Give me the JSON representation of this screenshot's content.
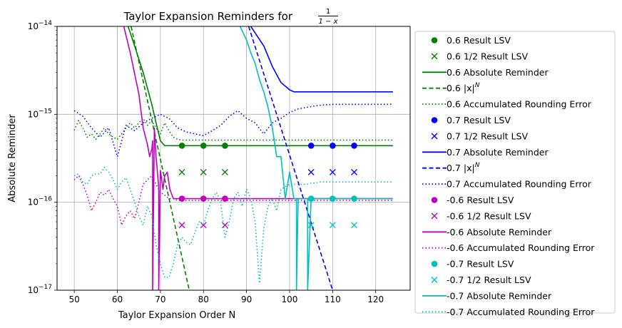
{
  "chart_data": {
    "type": "line",
    "title": "Taylor Expansion Reminders for",
    "title_fraction": {
      "numerator": "1",
      "denominator": "1 − x"
    },
    "xlabel": "Taylor Expansion Order N",
    "ylabel": "Absolute Reminder",
    "xlim": [
      46,
      128
    ],
    "ylim": [
      1e-17,
      1e-14
    ],
    "yscale": "log",
    "x_ticks": [
      50,
      60,
      70,
      80,
      90,
      100,
      110,
      120
    ],
    "y_ticks": [
      {
        "value": 1e-17,
        "base": "10",
        "exp": "−17"
      },
      {
        "value": 1e-16,
        "base": "10",
        "exp": "−16"
      },
      {
        "value": 1e-15,
        "base": "10",
        "exp": "−15"
      },
      {
        "value": 1e-14,
        "base": "10",
        "exp": "−14"
      }
    ],
    "grid": true,
    "legend_position": "outside right",
    "series": [
      {
        "name": "0.6 Result LSV",
        "kind": "marker",
        "marker": "circle",
        "color": "#008000",
        "x": [
          75,
          80,
          85
        ],
        "y": [
          4.4e-16,
          4.4e-16,
          4.4e-16
        ]
      },
      {
        "name": "0.6 1/2 Result LSV",
        "kind": "marker",
        "marker": "x",
        "color": "#008000",
        "x": [
          75,
          80,
          85
        ],
        "y": [
          2.2e-16,
          2.2e-16,
          2.2e-16
        ]
      },
      {
        "name": "0.6 Absolute Reminder",
        "kind": "line",
        "dash": "solid",
        "color": "#008000",
        "x": [
          62.5,
          64,
          66,
          68,
          69,
          70,
          71,
          72,
          80,
          90,
          100,
          110,
          124
        ],
        "y": [
          1e-14,
          6e-15,
          3e-15,
          1.3e-15,
          8e-16,
          5e-16,
          4.4e-16,
          4.4e-16,
          4.4e-16,
          4.4e-16,
          4.4e-16,
          4.4e-16,
          4.4e-16
        ]
      },
      {
        "name": "0.6 |x|^N",
        "name_base": "0.6 |x|",
        "name_sup": "N",
        "kind": "line",
        "dash": "dashed",
        "color": "#008000",
        "x": [
          63.2,
          76.7
        ],
        "y": [
          1e-14,
          1e-17
        ]
      },
      {
        "name": "0.6 Accumulated Rounding Error",
        "kind": "line",
        "dash": "dotted",
        "color": "#008000",
        "x": [
          50,
          51,
          52,
          53,
          54,
          55,
          56,
          57,
          58,
          59,
          60,
          61,
          62,
          63,
          64,
          65,
          66,
          67,
          68,
          69,
          70,
          71,
          72,
          73,
          74,
          75,
          76,
          77,
          78,
          79,
          80,
          85,
          90,
          100,
          110,
          124
        ],
        "y": [
          6.6e-16,
          8.5e-16,
          7e-16,
          5.5e-16,
          6e-16,
          5.2e-16,
          6e-16,
          7e-16,
          6e-16,
          5.5e-16,
          5.2e-16,
          6e-16,
          7e-16,
          8e-16,
          7e-16,
          8e-16,
          9e-16,
          7.5e-16,
          8.5e-16,
          7e-16,
          6e-16,
          8e-16,
          6.5e-16,
          5.5e-16,
          5.2e-16,
          5.1e-16,
          5.1e-16,
          5.1e-16,
          5.1e-16,
          5.1e-16,
          5.1e-16,
          5.1e-16,
          5.1e-16,
          5.1e-16,
          5.1e-16,
          5.1e-16
        ]
      },
      {
        "name": "0.7 Result LSV",
        "kind": "marker",
        "marker": "circle",
        "color": "#0000ff",
        "x": [
          105,
          110,
          115
        ],
        "y": [
          4.4e-16,
          4.4e-16,
          4.4e-16
        ]
      },
      {
        "name": "0.7 1/2 Result LSV",
        "kind": "marker",
        "marker": "x",
        "color": "#0000ff",
        "x": [
          105,
          110,
          115
        ],
        "y": [
          2.2e-16,
          2.2e-16,
          2.2e-16
        ]
      },
      {
        "name": "0.7 Absolute Reminder",
        "kind": "line",
        "dash": "solid",
        "color": "#0000ff",
        "x": [
          91,
          94,
          96,
          98,
          100,
          101,
          102,
          110,
          124
        ],
        "y": [
          1e-14,
          6e-15,
          3.5e-15,
          2.3e-15,
          1.9e-15,
          1.8e-15,
          1.8e-15,
          1.8e-15,
          1.8e-15
        ]
      },
      {
        "name": "0.7 |x|^N",
        "name_base": "0.7 |x|",
        "name_sup": "N",
        "kind": "line",
        "dash": "dashed",
        "color": "#0000ff",
        "x": [
          90.5,
          110
        ],
        "y": [
          1e-14,
          1e-17
        ]
      },
      {
        "name": "0.7 Accumulated Rounding Error",
        "kind": "line",
        "dash": "dotted",
        "color": "#0000ff",
        "x": [
          50,
          52,
          54,
          56,
          58,
          60,
          62,
          64,
          66,
          68,
          70,
          72,
          74,
          76,
          78,
          80,
          82,
          84,
          86,
          88,
          90,
          92,
          94,
          96,
          98,
          100,
          102,
          104,
          106,
          108,
          110,
          115,
          124
        ],
        "y": [
          1.1e-15,
          9.5e-16,
          7e-16,
          5.5e-16,
          7e-16,
          3.3e-16,
          7.5e-16,
          6.5e-16,
          8e-16,
          9e-16,
          1e-15,
          9e-16,
          7e-16,
          6.3e-16,
          6e-16,
          5.7e-16,
          6.5e-16,
          7.5e-16,
          9.5e-16,
          1.1e-15,
          9e-16,
          8e-16,
          6e-16,
          8e-16,
          9e-16,
          1.05e-15,
          1.15e-15,
          1.2e-15,
          1.25e-15,
          1.28e-15,
          1.3e-15,
          1.3e-15,
          1.3e-15
        ]
      },
      {
        "name": "-0.6 Result LSV",
        "kind": "marker",
        "marker": "circle",
        "color": "#bf00bf",
        "x": [
          75,
          80,
          85
        ],
        "y": [
          1.1e-16,
          1.1e-16,
          1.1e-16
        ]
      },
      {
        "name": "-0.6 1/2 Result LSV",
        "kind": "marker",
        "marker": "x",
        "color": "#bf00bf",
        "x": [
          75,
          80,
          85
        ],
        "y": [
          5.5e-17,
          5.5e-17,
          5.5e-17
        ]
      },
      {
        "name": "-0.6 Absolute Reminder",
        "kind": "line",
        "dash": "solid",
        "color": "#bf00bf",
        "x": [
          61.5,
          63,
          65,
          66,
          67,
          67.5,
          68,
          68.2,
          68.2,
          68.6,
          69,
          69.6,
          69.6,
          70,
          70.6,
          71,
          71.6,
          72.2,
          73,
          74,
          80,
          90,
          100,
          110,
          124
        ],
        "y": [
          1e-14,
          5e-15,
          1.7e-15,
          7e-16,
          4.5e-16,
          3.3e-16,
          4e-16,
          5e-16,
          1e-17,
          7e-16,
          3.3e-16,
          1.5e-16,
          1e-17,
          2.3e-16,
          1.4e-16,
          2e-16,
          2.2e-16,
          1.4e-16,
          1.1e-16,
          1.1e-16,
          1.1e-16,
          1.1e-16,
          1.1e-16,
          1.1e-16,
          1.1e-16
        ]
      },
      {
        "name": "-0.6 Accumulated Rounding Error",
        "kind": "line",
        "dash": "dotted",
        "color": "#bf00bf",
        "x": [
          50,
          51,
          52,
          53,
          54,
          55,
          56,
          57,
          58,
          59,
          60,
          61,
          62,
          63,
          64,
          65,
          66,
          67,
          68,
          69,
          70,
          71,
          72,
          73,
          74,
          75,
          76,
          77,
          78,
          79,
          80,
          85,
          90,
          100,
          110,
          124
        ],
        "y": [
          1.8e-16,
          2e-16,
          1.6e-16,
          1.2e-16,
          8e-17,
          1e-16,
          1.3e-16,
          1.2e-16,
          1.4e-16,
          1.1e-16,
          9e-17,
          5.5e-17,
          7e-17,
          8e-17,
          6.5e-17,
          1e-16,
          1.6e-16,
          1.8e-16,
          2e-16,
          1.6e-16,
          1.3e-16,
          1.2e-16,
          1.1e-16,
          1.1e-16,
          1.05e-16,
          1.05e-16,
          1.05e-16,
          1.05e-16,
          1.05e-16,
          1.05e-16,
          1.05e-16,
          1.05e-16,
          1.05e-16,
          1.05e-16,
          1.05e-16,
          1.05e-16
        ]
      },
      {
        "name": "-0.7 Result LSV",
        "kind": "marker",
        "marker": "circle",
        "color": "#00bfbf",
        "x": [
          105,
          110,
          115
        ],
        "y": [
          1.1e-16,
          1.1e-16,
          1.1e-16
        ]
      },
      {
        "name": "-0.7 1/2 Result LSV",
        "kind": "marker",
        "marker": "x",
        "color": "#00bfbf",
        "x": [
          105,
          110,
          115
        ],
        "y": [
          5.5e-17,
          5.5e-17,
          5.5e-17
        ]
      },
      {
        "name": "-0.7 Absolute Reminder",
        "kind": "line",
        "dash": "solid",
        "color": "#00bfbf",
        "x": [
          88.5,
          90,
          91,
          92,
          93,
          94,
          95,
          96,
          97,
          98,
          99,
          100,
          101,
          101.6,
          101.6,
          102,
          102.4,
          103,
          103.8,
          104.2,
          104.2,
          105,
          110,
          124
        ],
        "y": [
          1e-14,
          7e-15,
          5e-15,
          3.8e-15,
          2.5e-15,
          1.8e-15,
          1.2e-15,
          7e-16,
          3.3e-16,
          3.3e-16,
          1.1e-16,
          2.2e-16,
          1.1e-16,
          1.1e-16,
          1e-17,
          1.1e-16,
          1.1e-16,
          1.1e-16,
          1.1e-16,
          1.1e-16,
          1e-17,
          1.1e-16,
          1.1e-16,
          1.1e-16
        ]
      },
      {
        "name": "-0.7 Accumulated Rounding Error",
        "kind": "line",
        "dash": "dotted",
        "color": "#00bfbf",
        "x": [
          50,
          51,
          52,
          53,
          54,
          55,
          56,
          57,
          58,
          59,
          60,
          61,
          62,
          63,
          64,
          65,
          66,
          67,
          68,
          69,
          70,
          71,
          72,
          73,
          74,
          75,
          76,
          77,
          78,
          79,
          80,
          81,
          82,
          83,
          84,
          85,
          86,
          87,
          88,
          89,
          90,
          91,
          92,
          93,
          94,
          95,
          96,
          97,
          98,
          99,
          100,
          101,
          102,
          103,
          104,
          105,
          106,
          107,
          108,
          110,
          115,
          124
        ],
        "y": [
          2e-16,
          2.1e-16,
          1.7e-16,
          1.6e-16,
          2e-16,
          2.1e-16,
          2.1e-16,
          2.5e-16,
          2.2e-16,
          1.8e-16,
          1.4e-16,
          1.7e-16,
          1.9e-16,
          1.4e-16,
          1e-16,
          7e-17,
          5.5e-17,
          9e-17,
          7e-17,
          3.3e-17,
          2e-17,
          1.4e-17,
          1.4e-17,
          2e-17,
          3.3e-17,
          4e-17,
          3.5e-17,
          3.3e-17,
          4.5e-17,
          6e-17,
          5.5e-17,
          8e-17,
          1.1e-16,
          1.3e-16,
          1e-16,
          4e-17,
          6e-17,
          1.1e-16,
          1.3e-16,
          9e-17,
          1.4e-16,
          1.1e-16,
          6e-17,
          1.2e-17,
          5e-17,
          9e-17,
          1.1e-16,
          8e-17,
          1.4e-16,
          1.5e-16,
          1.6e-16,
          1.6e-16,
          1.6e-16,
          1.6e-16,
          1.6e-16,
          1.65e-16,
          1.65e-16,
          1.7e-16,
          1.7e-16,
          1.7e-16,
          1.7e-16,
          1.7e-16
        ]
      }
    ]
  }
}
